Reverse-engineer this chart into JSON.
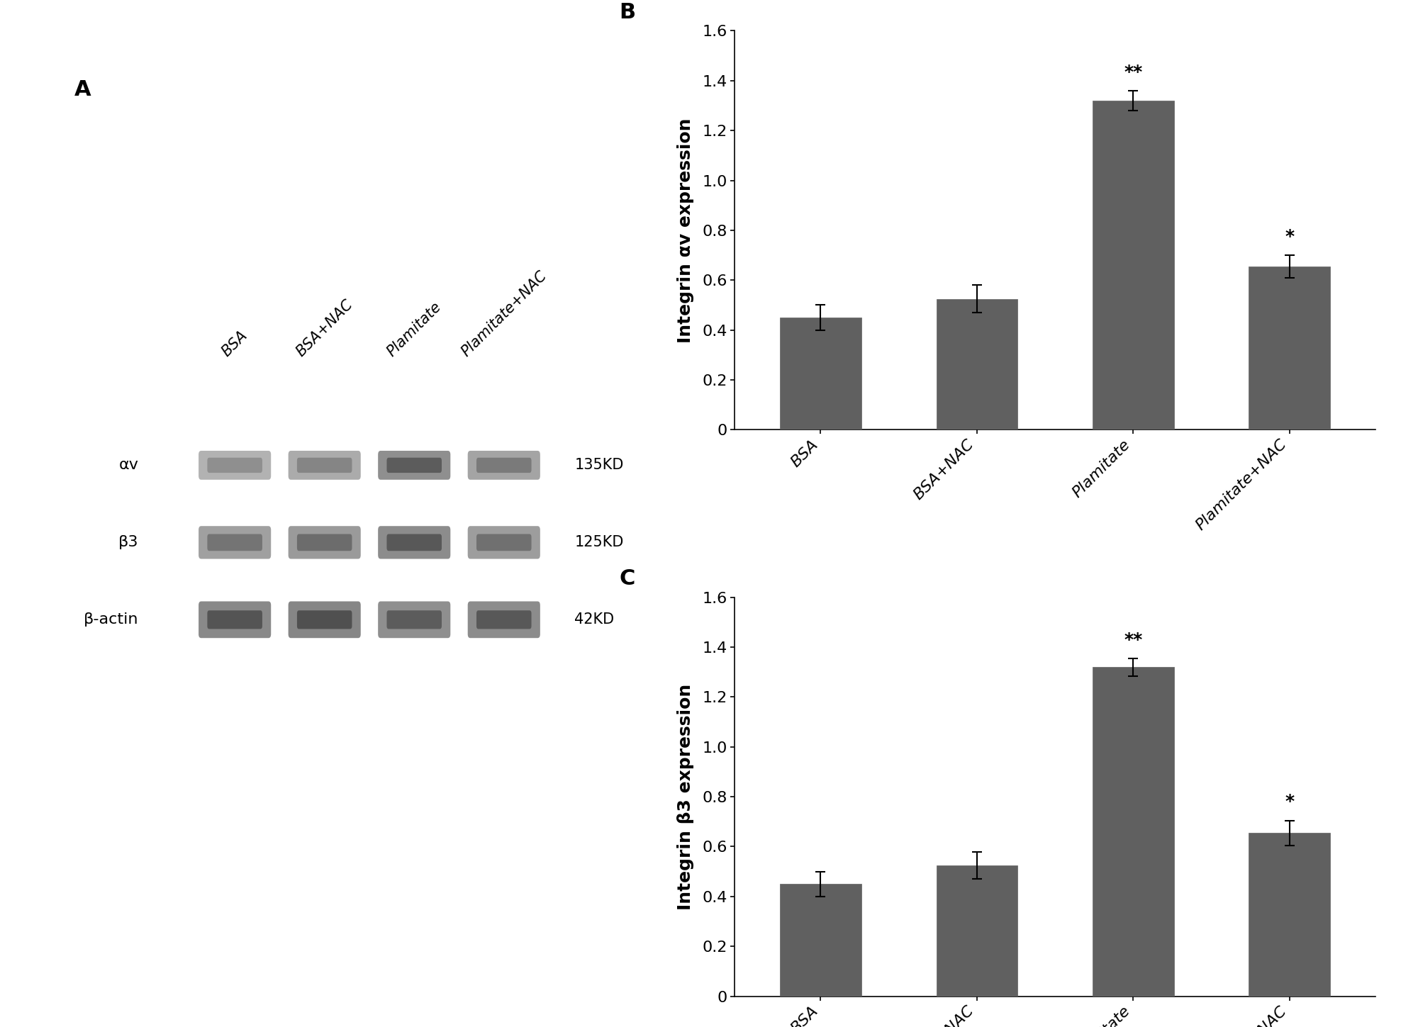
{
  "panel_B": {
    "categories": [
      "BSA",
      "BSA+NAC",
      "Plamitate",
      "Plamitate+NAC"
    ],
    "values": [
      0.45,
      0.525,
      1.32,
      0.655
    ],
    "errors": [
      0.05,
      0.055,
      0.04,
      0.045
    ],
    "ylabel": "Integrin αv expression",
    "ylim": [
      0,
      1.6
    ],
    "yticks": [
      0,
      0.2,
      0.4,
      0.6,
      0.8,
      1.0,
      1.2,
      1.4,
      1.6
    ],
    "sig_labels": [
      "",
      "",
      "**",
      "*"
    ],
    "label": "B"
  },
  "panel_C": {
    "categories": [
      "BSA",
      "BSA+NAC",
      "Plamitate",
      "Plamitate+NAC"
    ],
    "values": [
      0.45,
      0.525,
      1.32,
      0.655
    ],
    "errors": [
      0.05,
      0.055,
      0.035,
      0.05
    ],
    "ylabel": "Integrin β3 expression",
    "ylim": [
      0,
      1.6
    ],
    "yticks": [
      0,
      0.2,
      0.4,
      0.6,
      0.8,
      1.0,
      1.2,
      1.4,
      1.6
    ],
    "sig_labels": [
      "",
      "",
      "**",
      "*"
    ],
    "label": "C"
  },
  "bar_color": "#606060",
  "background_color": "#ffffff",
  "panel_A_label": "A",
  "blot_rows": [
    {
      "label": "αv",
      "kd": "135KD",
      "intensities": [
        0.55,
        0.6,
        0.8,
        0.65
      ]
    },
    {
      "label": "β3",
      "kd": "125KD",
      "intensities": [
        0.68,
        0.72,
        0.82,
        0.7
      ]
    },
    {
      "label": "β-actin",
      "kd": "42KD",
      "intensities": [
        0.84,
        0.86,
        0.8,
        0.82
      ]
    }
  ],
  "blot_columns": [
    "BSA",
    "BSA+NAC",
    "Plamitate",
    "Plamitate+NAC"
  ],
  "font_size_label": 22,
  "font_size_tick": 16,
  "font_size_axis_label": 18,
  "font_size_sig": 18,
  "font_size_blot_label": 16
}
